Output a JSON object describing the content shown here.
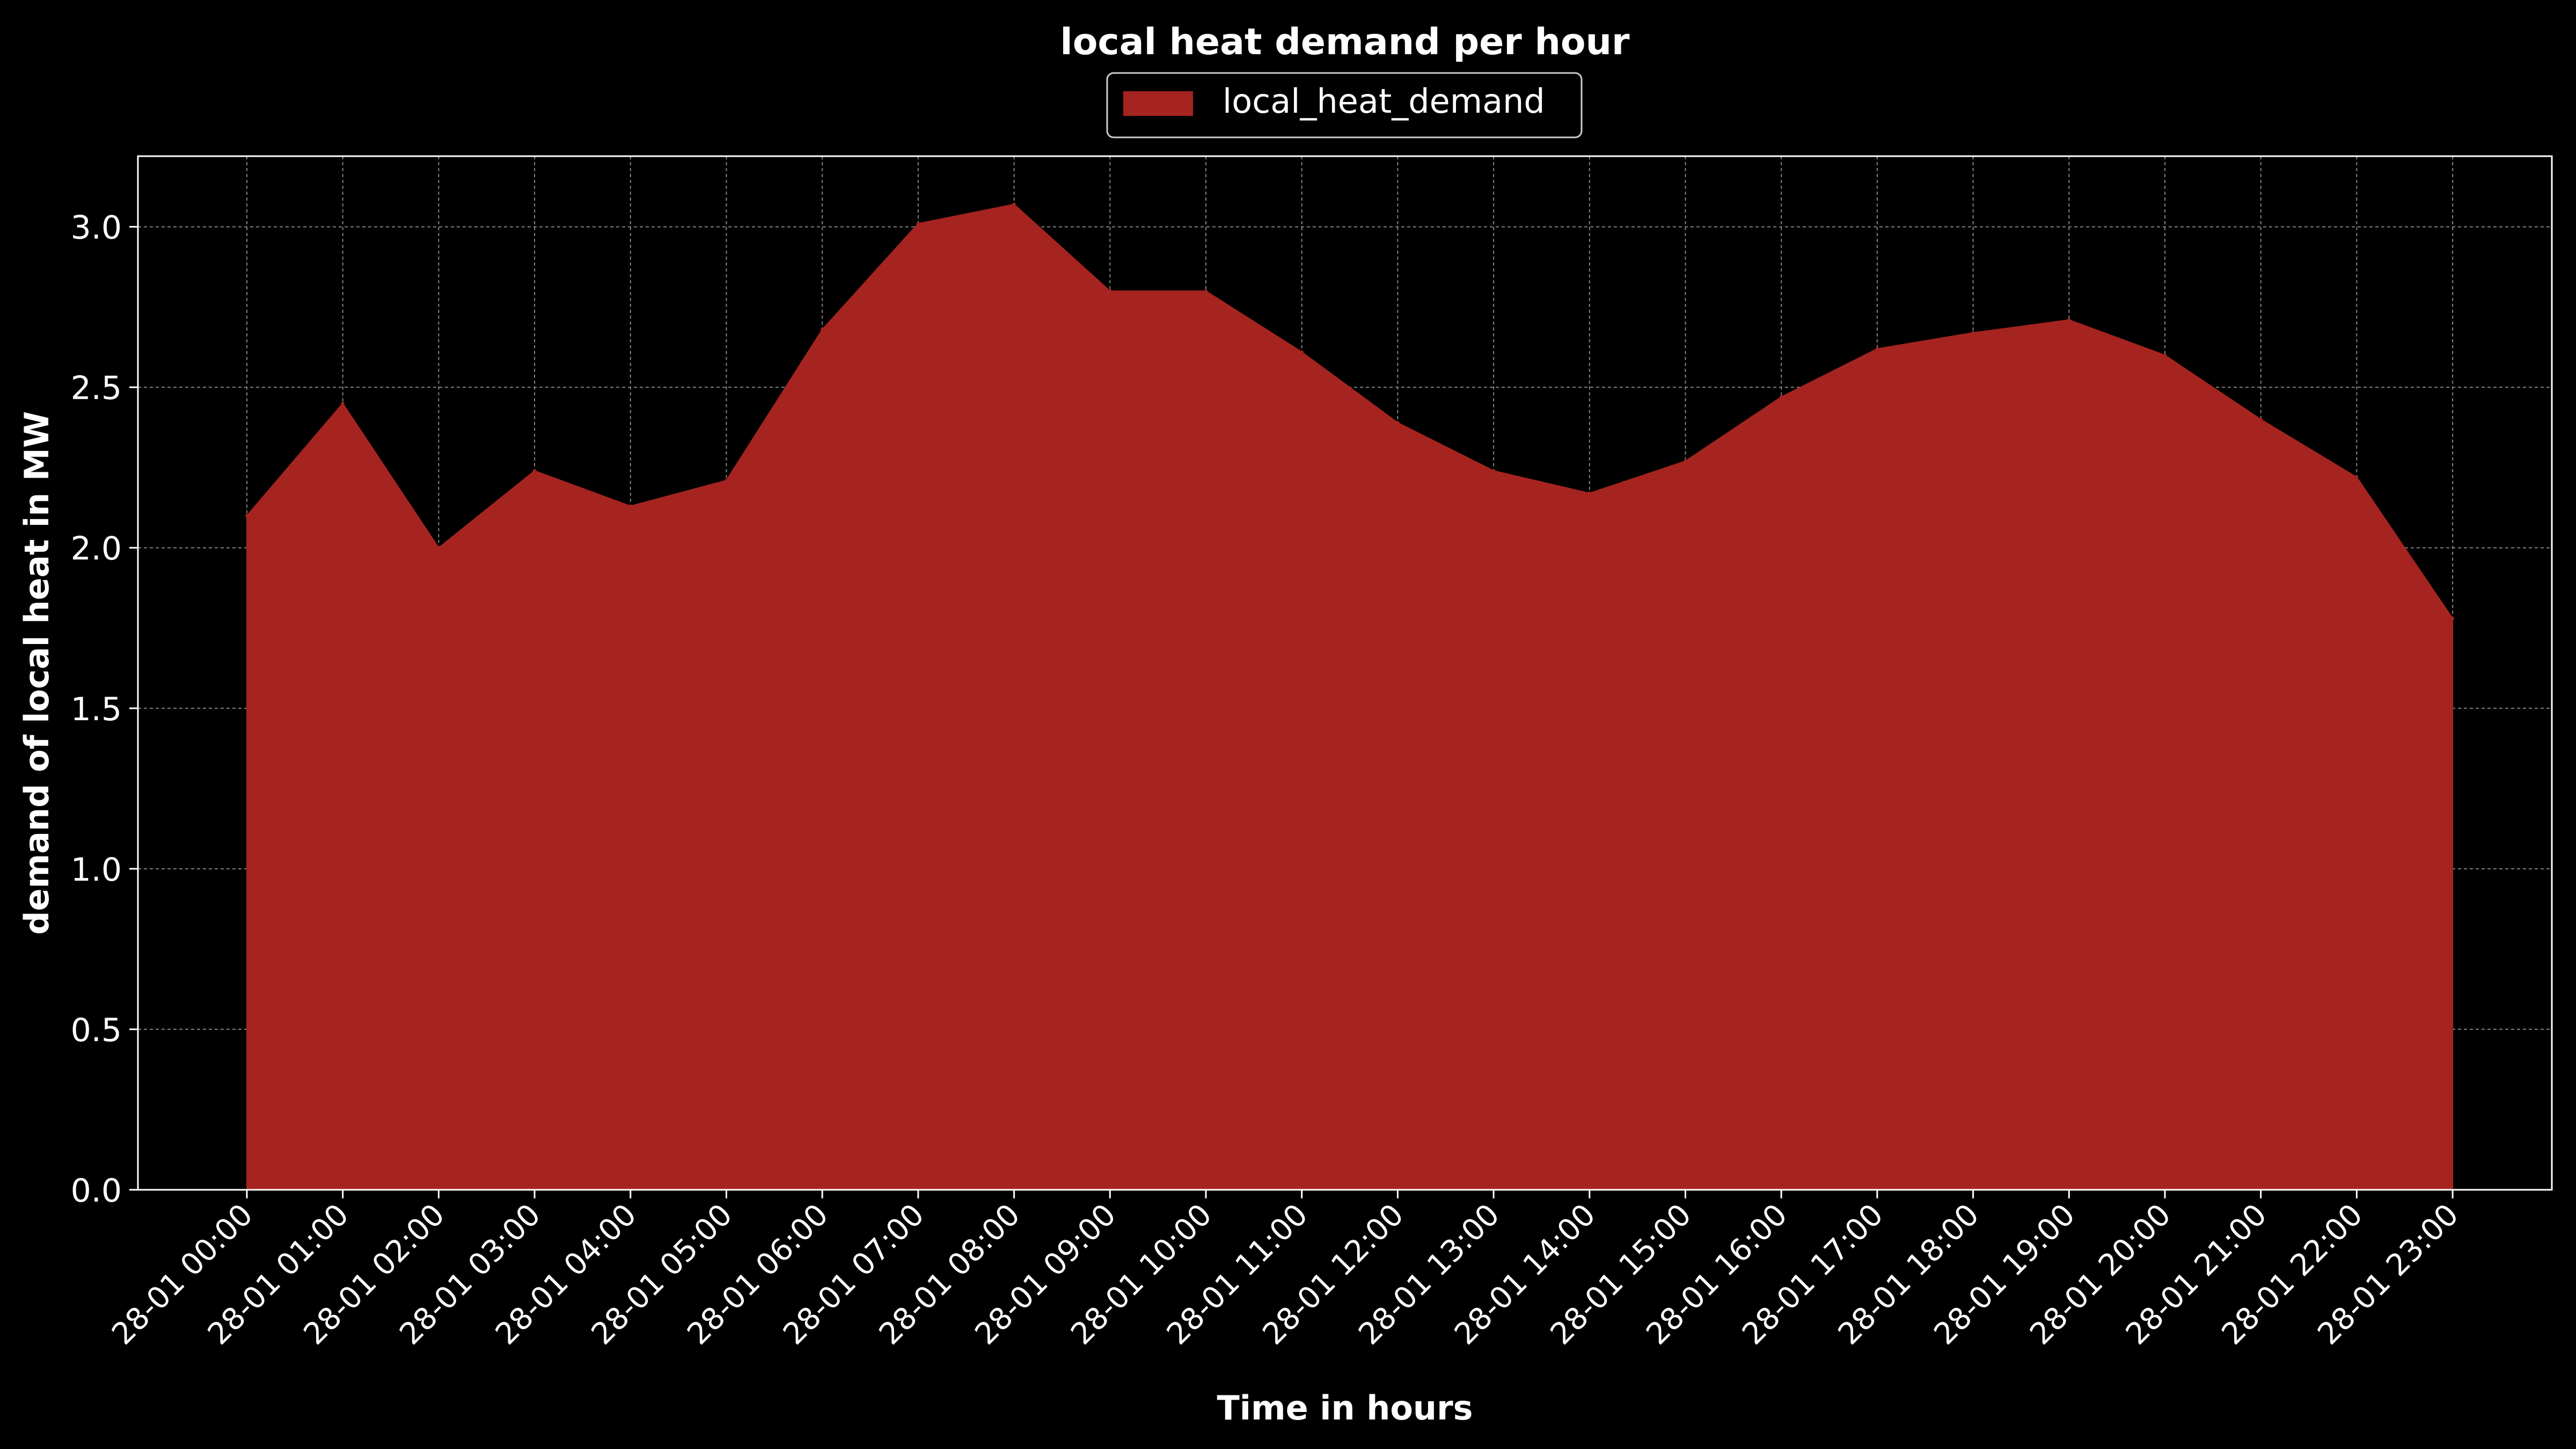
{
  "chart_data": {
    "type": "area",
    "title": "local heat demand per hour",
    "xlabel": "Time in hours",
    "ylabel": "demand of local heat in MW",
    "legend": {
      "placement": "top-center",
      "entries": [
        "local_heat_demand"
      ]
    },
    "grid": true,
    "ylim": [
      0,
      3.22
    ],
    "yticks": [
      "0.0",
      "0.5",
      "1.0",
      "1.5",
      "2.0",
      "2.5",
      "3.0"
    ],
    "categories": [
      "28-01 00:00",
      "28-01 01:00",
      "28-01 02:00",
      "28-01 03:00",
      "28-01 04:00",
      "28-01 05:00",
      "28-01 06:00",
      "28-01 07:00",
      "28-01 08:00",
      "28-01 09:00",
      "28-01 10:00",
      "28-01 11:00",
      "28-01 12:00",
      "28-01 13:00",
      "28-01 14:00",
      "28-01 15:00",
      "28-01 16:00",
      "28-01 17:00",
      "28-01 18:00",
      "28-01 19:00",
      "28-01 20:00",
      "28-01 21:00",
      "28-01 22:00",
      "28-01 23:00"
    ],
    "series": [
      {
        "name": "local_heat_demand",
        "color": "#a52420",
        "values": [
          2.1,
          2.45,
          2.0,
          2.24,
          2.13,
          2.21,
          2.68,
          3.01,
          3.07,
          2.8,
          2.8,
          2.61,
          2.39,
          2.24,
          2.17,
          2.27,
          2.47,
          2.62,
          2.67,
          2.71,
          2.6,
          2.4,
          2.22,
          1.78
        ]
      }
    ],
    "colors": {
      "background": "#000000",
      "axes": "#ffffff",
      "grid": "#808080"
    }
  }
}
